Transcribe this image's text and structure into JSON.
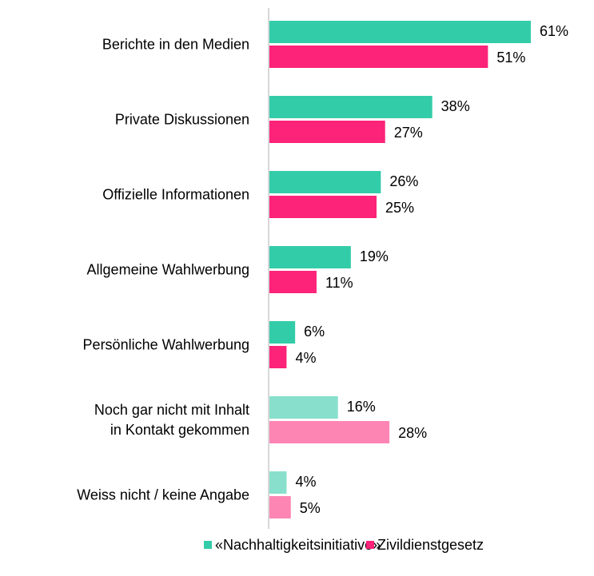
{
  "chart_data": {
    "type": "bar",
    "orientation": "horizontal",
    "categories": [
      "Berichte in den Medien",
      "Private Diskussionen",
      "Offizielle Informationen",
      "Allgemeine Wahlwerbung",
      "Persönliche Wahlwerbung",
      "Noch gar nicht mit Inhalt\nin Kontakt gekommen",
      "Weiss nicht / keine Angabe"
    ],
    "series": [
      {
        "name": "«Nachhaltigkeitsinitiative»",
        "color": "#33cca9",
        "colors": [
          "#33cca9",
          "#33cca9",
          "#33cca9",
          "#33cca9",
          "#33cca9",
          "#88e0cc",
          "#88e0cc"
        ],
        "values": [
          61,
          38,
          26,
          19,
          6,
          16,
          4
        ],
        "value_labels": [
          "61%",
          "38%",
          "26%",
          "19%",
          "6%",
          "16%",
          "4%"
        ]
      },
      {
        "name": "Zivildienstgesetz",
        "color": "#fc2379",
        "colors": [
          "#fc2379",
          "#fc2379",
          "#fc2379",
          "#fc2379",
          "#fc2379",
          "#fd85b4",
          "#fd85b4"
        ],
        "values": [
          51,
          27,
          25,
          11,
          4,
          28,
          5
        ],
        "value_labels": [
          "51%",
          "27%",
          "25%",
          "11%",
          "4%",
          "28%",
          "5%"
        ]
      }
    ],
    "legend": "bottom"
  }
}
